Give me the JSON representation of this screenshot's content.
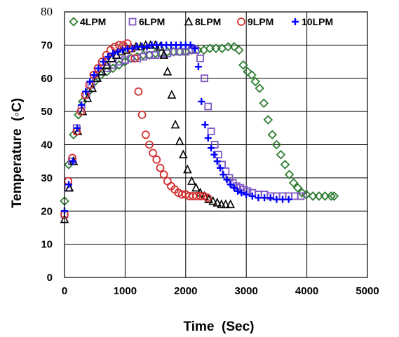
{
  "chart_data": {
    "type": "scatter",
    "title": "",
    "xlabel": "Time  (Sec)",
    "ylabel": "Temperature  (◦C)",
    "xlim": [
      0,
      5000
    ],
    "ylim": [
      0,
      80
    ],
    "x_ticks": [
      "0",
      "1000",
      "2000",
      "3000",
      "4000",
      "5000"
    ],
    "y_ticks": [
      "0",
      "10",
      "20",
      "30",
      "40",
      "50",
      "60",
      "70",
      "80"
    ],
    "grid": true,
    "legend_position": "top",
    "series": [
      {
        "name": "4LPM",
        "marker": "diamond",
        "color": "#2e7d32",
        "points": [
          [
            0,
            23
          ],
          [
            70,
            34
          ],
          [
            150,
            43
          ],
          [
            230,
            49
          ],
          [
            300,
            53
          ],
          [
            400,
            56
          ],
          [
            500,
            59
          ],
          [
            600,
            61
          ],
          [
            700,
            62
          ],
          [
            800,
            63
          ],
          [
            900,
            64
          ],
          [
            1000,
            65
          ],
          [
            1100,
            66
          ],
          [
            1200,
            66.5
          ],
          [
            1300,
            67
          ],
          [
            1400,
            67
          ],
          [
            1500,
            67.5
          ],
          [
            1600,
            67.5
          ],
          [
            1700,
            68
          ],
          [
            1800,
            68
          ],
          [
            1900,
            68
          ],
          [
            2000,
            68
          ],
          [
            2100,
            68.5
          ],
          [
            2200,
            68.5
          ],
          [
            2300,
            68.5
          ],
          [
            2400,
            69
          ],
          [
            2500,
            69
          ],
          [
            2600,
            69
          ],
          [
            2700,
            69.5
          ],
          [
            2800,
            69.5
          ],
          [
            2880,
            68.5
          ],
          [
            2950,
            64
          ],
          [
            3020,
            62
          ],
          [
            3090,
            61
          ],
          [
            3150,
            59
          ],
          [
            3220,
            57
          ],
          [
            3290,
            52.5
          ],
          [
            3360,
            47.5
          ],
          [
            3430,
            43
          ],
          [
            3500,
            40
          ],
          [
            3570,
            37
          ],
          [
            3640,
            34
          ],
          [
            3710,
            31
          ],
          [
            3780,
            28.5
          ],
          [
            3850,
            27
          ],
          [
            3920,
            25.5
          ],
          [
            3990,
            25
          ],
          [
            4100,
            24.5
          ],
          [
            4200,
            24.5
          ],
          [
            4300,
            24.5
          ],
          [
            4400,
            24.5
          ],
          [
            4450,
            24.5
          ]
        ]
      },
      {
        "name": "6LPM",
        "marker": "square",
        "color": "#7e57c2",
        "points": [
          [
            0,
            19
          ],
          [
            60,
            27
          ],
          [
            120,
            35
          ],
          [
            200,
            45
          ],
          [
            280,
            51
          ],
          [
            360,
            55
          ],
          [
            440,
            58
          ],
          [
            520,
            60
          ],
          [
            600,
            62
          ],
          [
            700,
            63
          ],
          [
            800,
            64
          ],
          [
            900,
            65
          ],
          [
            1000,
            65.5
          ],
          [
            1100,
            66
          ],
          [
            1200,
            66
          ],
          [
            1300,
            66.5
          ],
          [
            1400,
            67
          ],
          [
            1500,
            67
          ],
          [
            1600,
            67.5
          ],
          [
            1700,
            67.5
          ],
          [
            1800,
            68
          ],
          [
            1900,
            68
          ],
          [
            2000,
            68
          ],
          [
            2100,
            68.5
          ],
          [
            2160,
            68.5
          ],
          [
            2240,
            66
          ],
          [
            2310,
            60
          ],
          [
            2370,
            51.5
          ],
          [
            2420,
            44
          ],
          [
            2480,
            40
          ],
          [
            2540,
            37
          ],
          [
            2600,
            34
          ],
          [
            2660,
            32
          ],
          [
            2720,
            30
          ],
          [
            2780,
            28.5
          ],
          [
            2840,
            27.5
          ],
          [
            2900,
            27
          ],
          [
            2960,
            26.5
          ],
          [
            3020,
            26
          ],
          [
            3100,
            25.5
          ],
          [
            3200,
            25
          ],
          [
            3300,
            25
          ],
          [
            3400,
            24.5
          ],
          [
            3500,
            24.5
          ],
          [
            3600,
            24.5
          ],
          [
            3700,
            24.5
          ],
          [
            3800,
            24.5
          ],
          [
            3900,
            24.5
          ]
        ]
      },
      {
        "name": "8LPM",
        "marker": "triangle",
        "color": "#000000",
        "points": [
          [
            0,
            17.5
          ],
          [
            80,
            27
          ],
          [
            150,
            35
          ],
          [
            220,
            44
          ],
          [
            300,
            50
          ],
          [
            380,
            54
          ],
          [
            460,
            57
          ],
          [
            540,
            60
          ],
          [
            620,
            62
          ],
          [
            700,
            64
          ],
          [
            780,
            66
          ],
          [
            860,
            67
          ],
          [
            940,
            68
          ],
          [
            1020,
            68.5
          ],
          [
            1100,
            69
          ],
          [
            1180,
            69.5
          ],
          [
            1260,
            69.5
          ],
          [
            1340,
            70
          ],
          [
            1420,
            70
          ],
          [
            1500,
            70
          ],
          [
            1580,
            69.5
          ],
          [
            1640,
            67
          ],
          [
            1700,
            62
          ],
          [
            1770,
            55
          ],
          [
            1830,
            46
          ],
          [
            1900,
            41
          ],
          [
            1960,
            37
          ],
          [
            2030,
            32.5
          ],
          [
            2100,
            29
          ],
          [
            2170,
            27
          ],
          [
            2240,
            25.5
          ],
          [
            2310,
            24.5
          ],
          [
            2380,
            23.5
          ],
          [
            2450,
            23
          ],
          [
            2520,
            22.5
          ],
          [
            2590,
            22
          ],
          [
            2660,
            22
          ],
          [
            2740,
            22
          ]
        ]
      },
      {
        "name": "9LPM",
        "marker": "circle",
        "color": "#d32f2f",
        "points": [
          [
            0,
            19
          ],
          [
            60,
            29
          ],
          [
            130,
            36
          ],
          [
            200,
            44
          ],
          [
            270,
            50
          ],
          [
            340,
            55
          ],
          [
            410,
            58
          ],
          [
            480,
            61
          ],
          [
            550,
            63
          ],
          [
            620,
            65
          ],
          [
            690,
            67
          ],
          [
            760,
            68.5
          ],
          [
            830,
            69.5
          ],
          [
            900,
            70
          ],
          [
            970,
            70
          ],
          [
            1040,
            70.5
          ],
          [
            1100,
            69
          ],
          [
            1160,
            66
          ],
          [
            1220,
            56
          ],
          [
            1280,
            49
          ],
          [
            1340,
            43
          ],
          [
            1400,
            40
          ],
          [
            1460,
            37.5
          ],
          [
            1520,
            35.5
          ],
          [
            1580,
            33
          ],
          [
            1640,
            31
          ],
          [
            1700,
            29
          ],
          [
            1760,
            27.5
          ],
          [
            1820,
            26.5
          ],
          [
            1880,
            25.5
          ],
          [
            1940,
            25
          ],
          [
            2000,
            25
          ],
          [
            2060,
            24.5
          ],
          [
            2120,
            24.5
          ],
          [
            2180,
            24.5
          ],
          [
            2240,
            24.5
          ],
          [
            2300,
            24.5
          ],
          [
            2360,
            24
          ]
        ]
      },
      {
        "name": "10LPM",
        "marker": "plus",
        "color": "#0000ff",
        "points": [
          [
            0,
            20
          ],
          [
            70,
            28
          ],
          [
            140,
            35
          ],
          [
            210,
            45
          ],
          [
            280,
            52
          ],
          [
            350,
            56
          ],
          [
            420,
            59
          ],
          [
            490,
            61
          ],
          [
            560,
            63
          ],
          [
            640,
            65
          ],
          [
            720,
            66.5
          ],
          [
            800,
            67.5
          ],
          [
            880,
            68
          ],
          [
            960,
            68.5
          ],
          [
            1040,
            69
          ],
          [
            1120,
            69
          ],
          [
            1200,
            69.5
          ],
          [
            1280,
            69.5
          ],
          [
            1360,
            69.5
          ],
          [
            1440,
            70
          ],
          [
            1520,
            70
          ],
          [
            1600,
            70
          ],
          [
            1680,
            70
          ],
          [
            1760,
            70
          ],
          [
            1840,
            70
          ],
          [
            1920,
            70
          ],
          [
            2000,
            70
          ],
          [
            2080,
            70
          ],
          [
            2150,
            69
          ],
          [
            2210,
            63.5
          ],
          [
            2260,
            53
          ],
          [
            2320,
            46
          ],
          [
            2370,
            42
          ],
          [
            2420,
            39
          ],
          [
            2470,
            37
          ],
          [
            2520,
            35
          ],
          [
            2570,
            33
          ],
          [
            2620,
            31
          ],
          [
            2680,
            29.5
          ],
          [
            2740,
            28
          ],
          [
            2800,
            27
          ],
          [
            2860,
            26
          ],
          [
            2920,
            25.5
          ],
          [
            3000,
            25
          ],
          [
            3100,
            24.5
          ],
          [
            3200,
            24
          ],
          [
            3300,
            24
          ],
          [
            3400,
            24
          ],
          [
            3500,
            23.5
          ],
          [
            3600,
            23.5
          ],
          [
            3700,
            23.5
          ]
        ]
      }
    ]
  }
}
